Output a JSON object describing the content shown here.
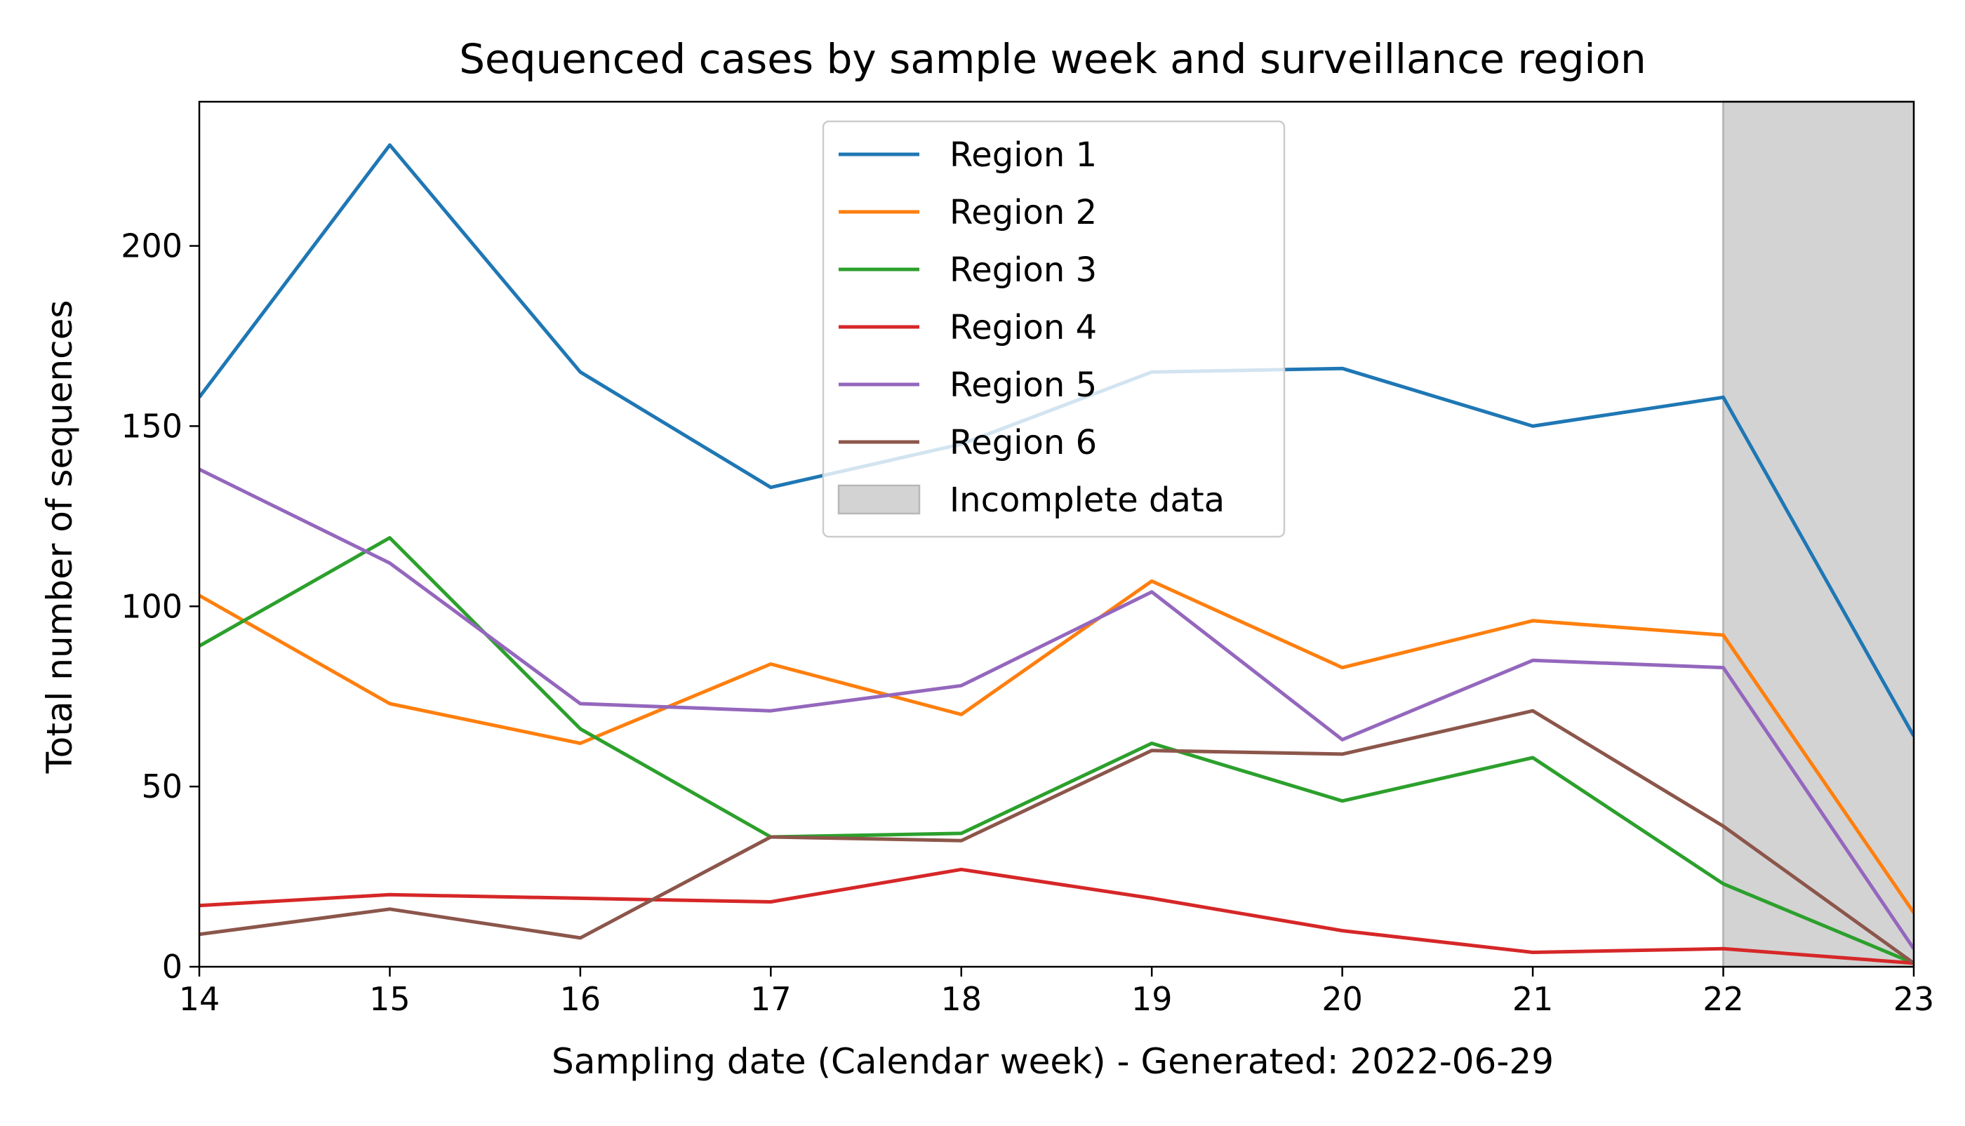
{
  "chart_data": {
    "type": "line",
    "title": "Sequenced cases by sample week and surveillance region",
    "xlabel": "Sampling date (Calendar week) - Generated: 2022-06-29",
    "ylabel": "Total number of sequences",
    "x": [
      14,
      15,
      16,
      17,
      18,
      19,
      20,
      21,
      22,
      23
    ],
    "xlim": [
      14,
      23
    ],
    "ylim": [
      0,
      240
    ],
    "xticks": [
      "14",
      "15",
      "16",
      "17",
      "18",
      "19",
      "20",
      "21",
      "22",
      "23"
    ],
    "yticks": [
      "0",
      "50",
      "100",
      "150",
      "200"
    ],
    "grid": false,
    "legend_position": "top-center",
    "series": [
      {
        "name": "Region 1",
        "color": "#1f77b4",
        "values": [
          158,
          228,
          165,
          133,
          145,
          165,
          166,
          150,
          158,
          64
        ]
      },
      {
        "name": "Region 2",
        "color": "#ff7f0e",
        "values": [
          103,
          73,
          62,
          84,
          70,
          107,
          83,
          96,
          92,
          15
        ]
      },
      {
        "name": "Region 3",
        "color": "#2ca02c",
        "values": [
          89,
          119,
          66,
          36,
          37,
          62,
          46,
          58,
          23,
          1
        ]
      },
      {
        "name": "Region 4",
        "color": "#d62728",
        "values": [
          17,
          20,
          19,
          18,
          27,
          19,
          10,
          4,
          5,
          1
        ]
      },
      {
        "name": "Region 5",
        "color": "#9467bd",
        "values": [
          138,
          112,
          73,
          71,
          78,
          104,
          63,
          85,
          83,
          5
        ]
      },
      {
        "name": "Region 6",
        "color": "#8c564b",
        "values": [
          9,
          16,
          8,
          36,
          35,
          60,
          59,
          71,
          39,
          1
        ]
      }
    ],
    "shaded_region": {
      "label": "Incomplete data",
      "x_start": 22,
      "x_end": 23,
      "color": "#d3d3d3"
    }
  }
}
